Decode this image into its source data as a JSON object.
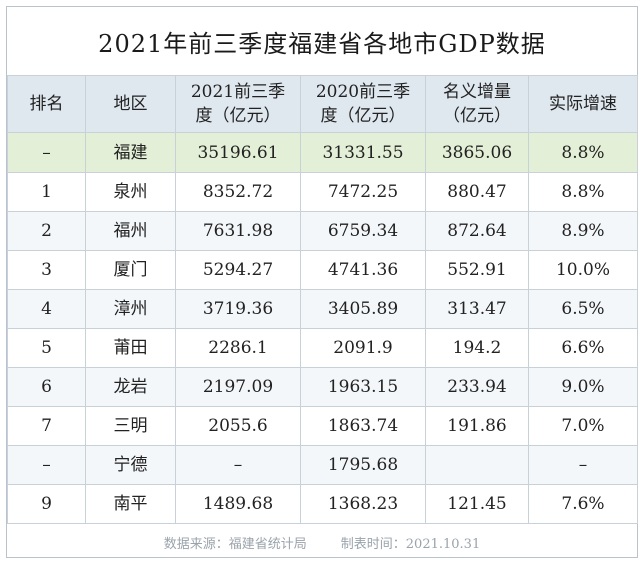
{
  "title": "2021年前三季度福建省各地市GDP数据",
  "headers": {
    "rank": "排名",
    "region": "地区",
    "gdp2021_l1": "2021前三季",
    "gdp2021_l2": "度（亿元）",
    "gdp2020_l1": "2020前三季",
    "gdp2020_l2": "度（亿元）",
    "increase_l1": "名义增量",
    "increase_l2": "（亿元）",
    "growth": "实际增速"
  },
  "rows": [
    {
      "rank": "–",
      "region": "福建",
      "gdp2021": "35196.61",
      "gdp2020": "31331.55",
      "increase": "3865.06",
      "growth": "8.8%"
    },
    {
      "rank": "1",
      "region": "泉州",
      "gdp2021": "8352.72",
      "gdp2020": "7472.25",
      "increase": "880.47",
      "growth": "8.8%"
    },
    {
      "rank": "2",
      "region": "福州",
      "gdp2021": "7631.98",
      "gdp2020": "6759.34",
      "increase": "872.64",
      "growth": "8.9%"
    },
    {
      "rank": "3",
      "region": "厦门",
      "gdp2021": "5294.27",
      "gdp2020": "4741.36",
      "increase": "552.91",
      "growth": "10.0%"
    },
    {
      "rank": "4",
      "region": "漳州",
      "gdp2021": "3719.36",
      "gdp2020": "3405.89",
      "increase": "313.47",
      "growth": "6.5%"
    },
    {
      "rank": "5",
      "region": "莆田",
      "gdp2021": "2286.1",
      "gdp2020": "2091.9",
      "increase": "194.2",
      "growth": "6.6%"
    },
    {
      "rank": "6",
      "region": "龙岩",
      "gdp2021": "2197.09",
      "gdp2020": "1963.15",
      "increase": "233.94",
      "growth": "9.0%"
    },
    {
      "rank": "7",
      "region": "三明",
      "gdp2021": "2055.6",
      "gdp2020": "1863.74",
      "increase": "191.86",
      "growth": "7.0%"
    },
    {
      "rank": "–",
      "region": "宁德",
      "gdp2021": "–",
      "gdp2020": "1795.68",
      "increase": "",
      "growth": "–"
    },
    {
      "rank": "9",
      "region": "南平",
      "gdp2021": "1489.68",
      "gdp2020": "1368.23",
      "increase": "121.45",
      "growth": "7.6%"
    }
  ],
  "footer": {
    "source": "数据来源：福建省统计局",
    "date": "制表时间：2021.10.31"
  }
}
